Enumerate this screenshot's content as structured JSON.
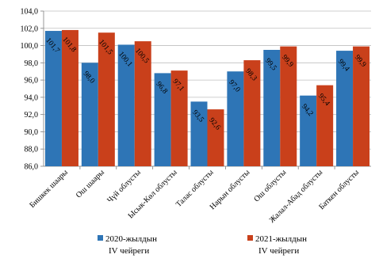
{
  "chart_data": {
    "type": "bar",
    "title": "",
    "xlabel": "",
    "ylabel": "",
    "ylim": [
      86.0,
      104.0
    ],
    "ytick_step": 2.0,
    "ytick_labels": [
      "86,0",
      "88,0",
      "90,0",
      "92,0",
      "94,0",
      "96,0",
      "98,0",
      "100,0",
      "102,0",
      "104,0"
    ],
    "grid": true,
    "legend_position": "bottom",
    "categories": [
      "Бишкек шаары",
      "Ош шаары",
      "Чүй облусты",
      "Ысык-Көл облусты",
      "Талас облусты",
      "Нарын облусты",
      "Ош облусты",
      "Жалал-Абад облусты",
      "Баткен облусты"
    ],
    "series": [
      {
        "name": "2020-жылдын IV чейреги",
        "legend_lines": [
          "2020-жылдын",
          "IV чейреги"
        ],
        "color": "#2E75B6",
        "values": [
          101.7,
          98.0,
          100.1,
          96.8,
          93.5,
          97.0,
          99.5,
          94.2,
          99.4
        ],
        "labels": [
          "101,7",
          "98,0",
          "100,1",
          "96,8",
          "93,5",
          "97,0",
          "99,5",
          "94,2",
          "99,4"
        ]
      },
      {
        "name": "2021-жылдын IV чейреги",
        "legend_lines": [
          "2021-жылдын",
          "IV чейреги"
        ],
        "color": "#C9401B",
        "values": [
          101.8,
          101.5,
          100.5,
          97.1,
          92.6,
          98.3,
          99.9,
          95.4,
          99.9
        ],
        "labels": [
          "101,8",
          "101,5",
          "100,5",
          "97,1",
          "92,6",
          "98,3",
          "99,9",
          "95,4",
          "99,9"
        ]
      }
    ]
  }
}
